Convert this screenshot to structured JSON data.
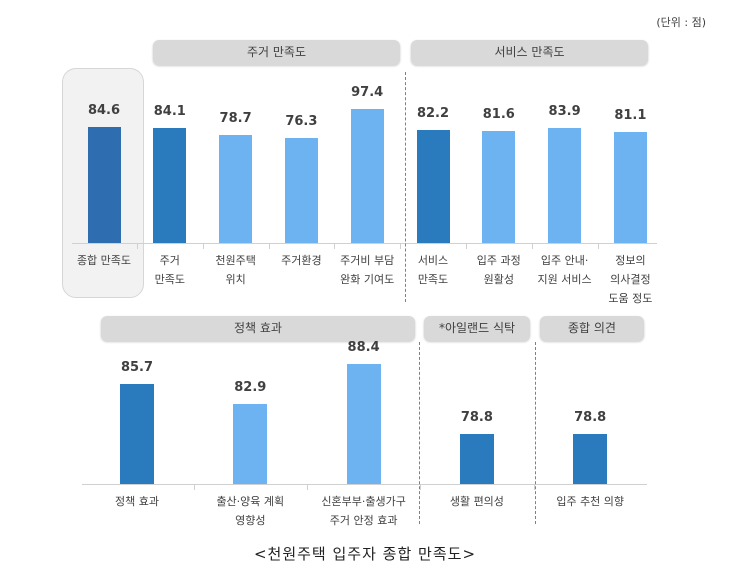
{
  "unit_label": "(단위 : 점)",
  "caption": "<천원주택 입주자 종합 만족도>",
  "colors": {
    "overall": "#2e6db0",
    "summary": "#2a7bbd",
    "detail": "#6db3f2",
    "header_bg": "#d9d9d9"
  },
  "chart_data": [
    {
      "type": "bar",
      "title": "",
      "ylim": [
        0,
        100
      ],
      "grid": false,
      "groups": [
        {
          "label": "",
          "highlighted_box": true
        },
        {
          "label": "주거 만족도"
        },
        {
          "label": "서비스 만족도"
        }
      ],
      "categories": [
        "종합 만족도",
        "주거\n만족도",
        "천원주택\n위치",
        "주거환경",
        "주거비 부담\n완화 기여도",
        "서비스\n만족도",
        "입주 과정\n원활성",
        "입주 안내·\n지원 서비스",
        "정보의\n의사결정\n도움 정도"
      ],
      "values": [
        84.6,
        84.1,
        78.7,
        76.3,
        97.4,
        82.2,
        81.6,
        83.9,
        81.1
      ],
      "value_labels": [
        "84.6",
        "84.1",
        "78.7",
        "76.3",
        "97.4",
        "82.2",
        "81.6",
        "83.9",
        "81.1"
      ],
      "group_index": [
        0,
        1,
        1,
        1,
        1,
        2,
        2,
        2,
        2
      ],
      "bar_style": [
        "overall",
        "summary",
        "detail",
        "detail",
        "detail",
        "summary",
        "detail",
        "detail",
        "detail"
      ]
    },
    {
      "type": "bar",
      "title": "",
      "ylim": [
        72,
        92
      ],
      "grid": false,
      "groups": [
        {
          "label": "정책 효과"
        },
        {
          "label": "*아일랜드 식탁"
        },
        {
          "label": "종합 의견"
        }
      ],
      "categories": [
        "정책 효과",
        "출산·양육 계획\n영향성",
        "신혼부부·출생가구\n주거 안정 효과",
        "생활 편의성",
        "입주 추천 의향"
      ],
      "values": [
        85.7,
        82.9,
        88.4,
        78.8,
        78.8
      ],
      "value_labels": [
        "85.7",
        "82.9",
        "88.4",
        "78.8",
        "78.8"
      ],
      "group_index": [
        0,
        0,
        0,
        1,
        2
      ],
      "bar_style": [
        "summary",
        "detail",
        "detail",
        "summary",
        "summary"
      ]
    }
  ]
}
